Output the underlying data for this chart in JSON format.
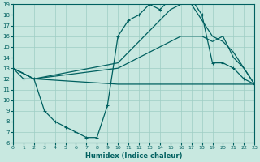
{
  "xlabel": "Humidex (Indice chaleur)",
  "xlim": [
    0,
    23
  ],
  "ylim": [
    6,
    19
  ],
  "yticks": [
    6,
    7,
    8,
    9,
    10,
    11,
    12,
    13,
    14,
    15,
    16,
    17,
    18,
    19
  ],
  "xticks": [
    0,
    1,
    2,
    3,
    4,
    5,
    6,
    7,
    8,
    9,
    10,
    11,
    12,
    13,
    14,
    15,
    16,
    17,
    18,
    19,
    20,
    21,
    22,
    23
  ],
  "bg_color": "#c8e8e0",
  "grid_color": "#9ecec4",
  "line_color": "#006060",
  "line1_x": [
    0,
    1,
    2,
    3,
    4,
    5,
    6,
    7,
    8,
    9,
    10,
    11,
    12,
    13,
    14,
    15,
    16,
    17,
    18,
    19,
    20,
    21,
    22,
    23
  ],
  "line1_y": [
    13,
    12,
    12,
    9,
    8,
    7.5,
    7,
    6.5,
    6.5,
    9.5,
    16,
    17.5,
    18,
    19,
    18.5,
    19.5,
    19.5,
    19.5,
    18,
    13.5,
    13.5,
    13,
    12,
    11.5
  ],
  "line2_x": [
    0,
    2,
    10,
    18,
    19,
    20,
    21,
    22,
    23
  ],
  "line2_y": [
    13,
    12,
    11.5,
    11.5,
    11.5,
    11.5,
    11.5,
    11.5,
    11.5
  ],
  "line3_x": [
    0,
    2,
    10,
    11,
    12,
    13,
    14,
    15,
    16,
    17,
    18,
    19,
    20,
    21,
    22,
    23
  ],
  "line3_y": [
    13,
    12,
    13,
    13.5,
    14,
    14.5,
    15,
    15.5,
    16,
    16,
    16,
    15.5,
    16,
    14,
    13,
    11.5
  ],
  "line4_x": [
    0,
    2,
    10,
    11,
    12,
    13,
    14,
    15,
    16,
    17,
    18,
    19,
    20,
    21,
    22,
    23
  ],
  "line4_y": [
    13,
    12,
    13.5,
    14.5,
    15.5,
    16.5,
    17.5,
    18.5,
    19,
    19,
    17.5,
    16,
    15.5,
    14.5,
    13,
    11.5
  ]
}
